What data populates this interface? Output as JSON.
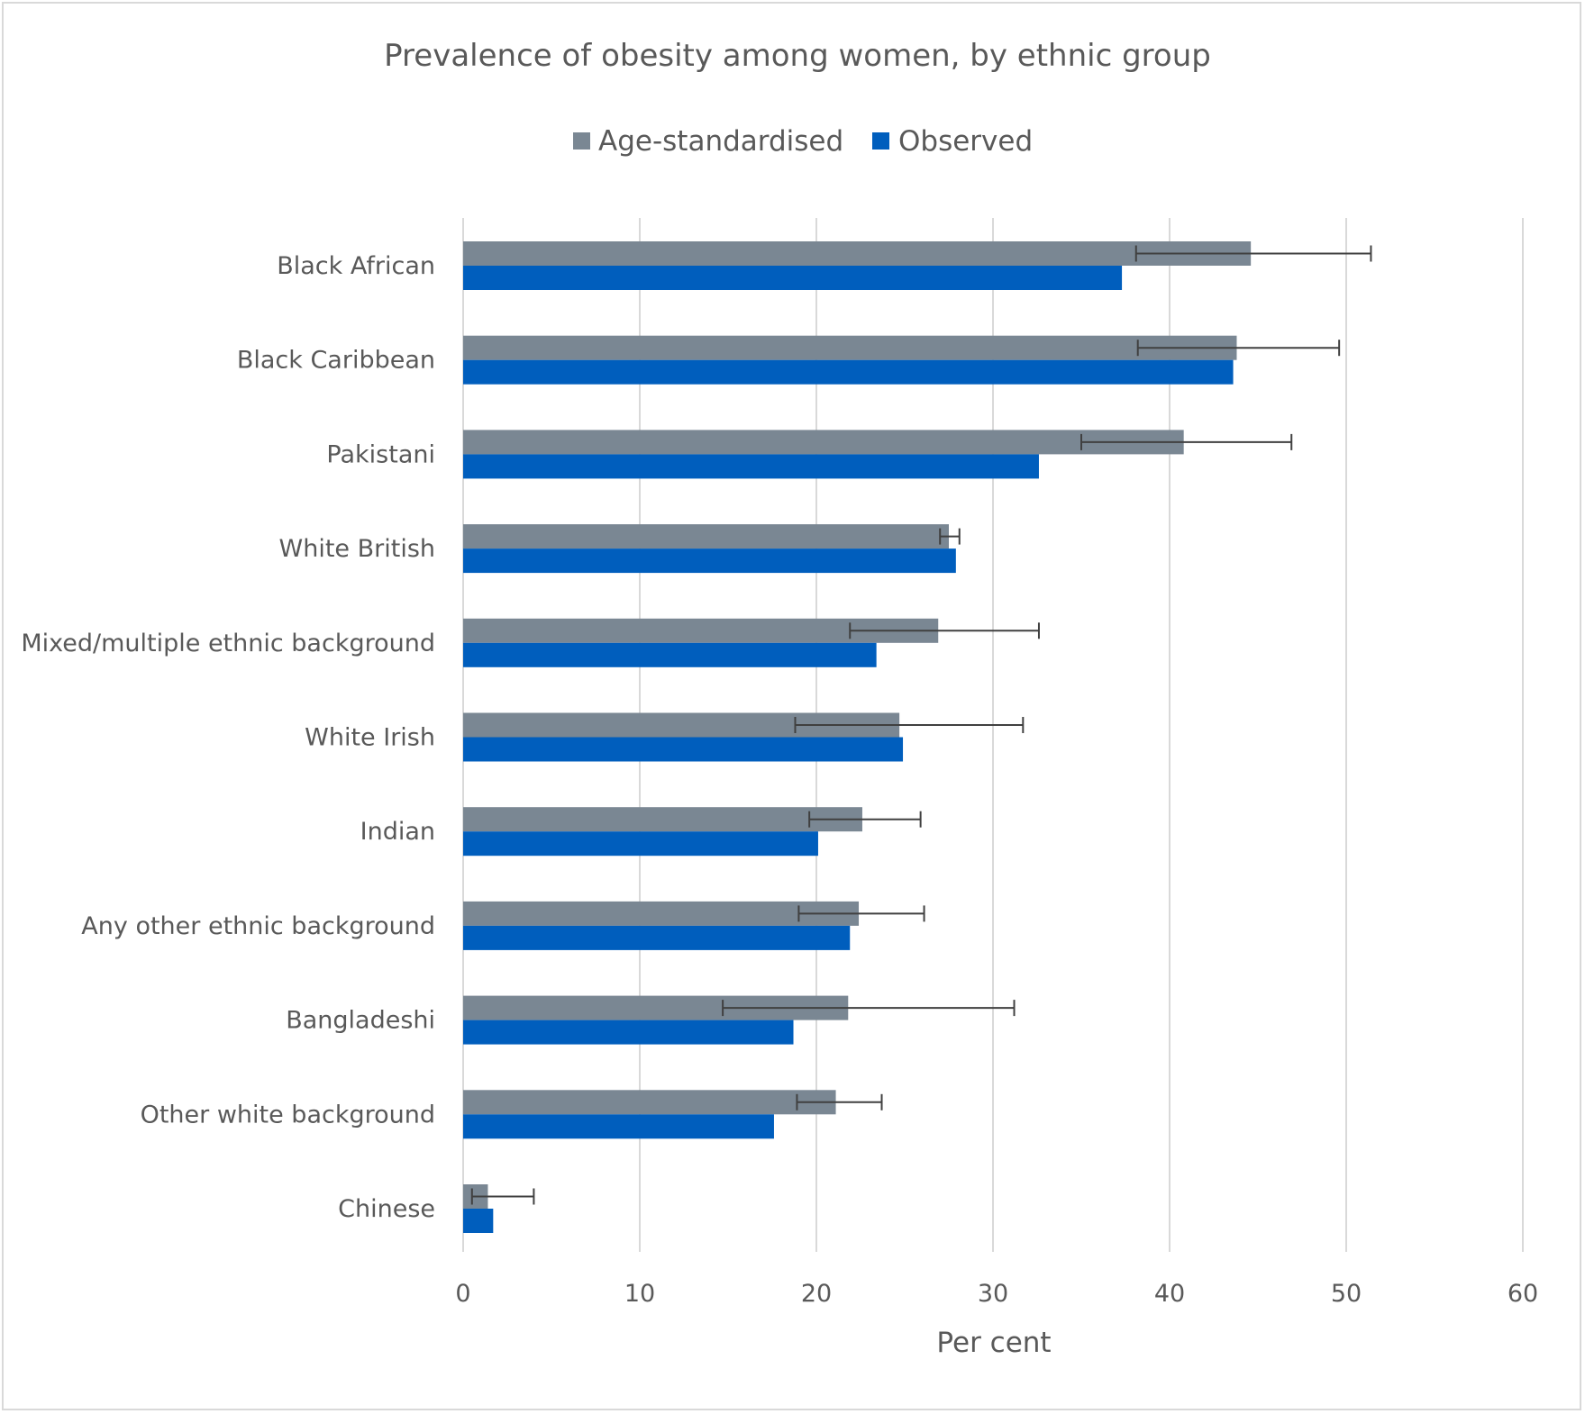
{
  "chart_data": {
    "type": "bar",
    "orientation": "horizontal",
    "title": "Prevalence of obesity among women, by ethnic group",
    "xlabel": "Per cent",
    "ylabel": "",
    "xlim": [
      0,
      60
    ],
    "x_ticks": [
      0,
      10,
      20,
      30,
      40,
      50,
      60
    ],
    "grid": "vertical",
    "legend_position": "top",
    "categories": [
      "Black African",
      "Black Caribbean",
      "Pakistani",
      "White British",
      "Mixed/multiple ethnic background",
      "White Irish",
      "Indian",
      "Any other ethnic background",
      "Bangladeshi",
      "Other white background",
      "Chinese"
    ],
    "series": [
      {
        "name": "Age-standardised",
        "color": "#7a8793",
        "values": [
          44.6,
          43.8,
          40.8,
          27.5,
          26.9,
          24.7,
          22.6,
          22.4,
          21.8,
          21.1,
          1.4
        ],
        "error_low": [
          38.1,
          38.2,
          35.0,
          27.0,
          21.9,
          18.8,
          19.6,
          19.0,
          14.7,
          18.9,
          0.5
        ],
        "error_high": [
          51.4,
          49.6,
          46.9,
          28.1,
          32.6,
          31.7,
          25.9,
          26.1,
          31.2,
          23.7,
          4.0
        ]
      },
      {
        "name": "Observed",
        "color": "#005ebd",
        "values": [
          37.3,
          43.6,
          32.6,
          27.9,
          23.4,
          24.9,
          20.1,
          21.9,
          18.7,
          17.6,
          1.7
        ]
      }
    ]
  }
}
